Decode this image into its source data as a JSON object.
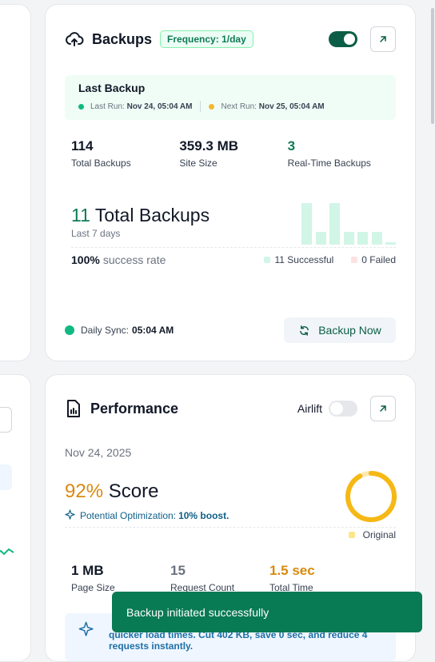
{
  "backups": {
    "title": "Backups",
    "frequency_badge": "Frequency: 1/day",
    "last_backup": {
      "title": "Last Backup",
      "last_run_label": "Last Run:",
      "last_run_value": "Nov 24, 05:04 AM",
      "next_run_label": "Next Run:",
      "next_run_value": "Nov 25, 05:04 AM"
    },
    "stats": [
      {
        "value": "114",
        "label": "Total Backups"
      },
      {
        "value": "359.3 MB",
        "label": "Site Size"
      },
      {
        "value": "3",
        "label": "Real-Time Backups"
      }
    ],
    "total_count": "11",
    "total_label": "Total Backups",
    "period": "Last 7 days",
    "success_rate": "100%",
    "success_rate_label": "success rate",
    "successful_legend": "11 Successful",
    "failed_legend": "0 Failed",
    "daily_sync_label": "Daily Sync:",
    "daily_sync_time": "05:04 AM",
    "backup_now_label": "Backup Now",
    "bar_levels": [
      1.0,
      0.3,
      1.0,
      0.3,
      0.3,
      0.3,
      0.05
    ],
    "colors": {
      "accent": "#0b5e45",
      "green": "#0f7a55",
      "bar": "#d1f5e6"
    }
  },
  "performance": {
    "title": "Performance",
    "airlift_label": "Airlift",
    "date": "Nov 24, 2025",
    "score_value": "92%",
    "score_label": "Score",
    "optimization_label": "Potential Optimization:",
    "optimization_value": "10% boost.",
    "original_legend": "Original",
    "score_fraction": 0.92,
    "stats": [
      {
        "value": "1 MB",
        "label": "Page Size"
      },
      {
        "value": "15",
        "label": "Request Count"
      },
      {
        "value": "1.5 sec",
        "label": "Total Time"
      }
    ],
    "tip_text": "quicker load times. Cut 402 KB, save 0 sec, and reduce 4 requests instantly."
  },
  "toast": {
    "message": "Backup initiated successfully"
  }
}
